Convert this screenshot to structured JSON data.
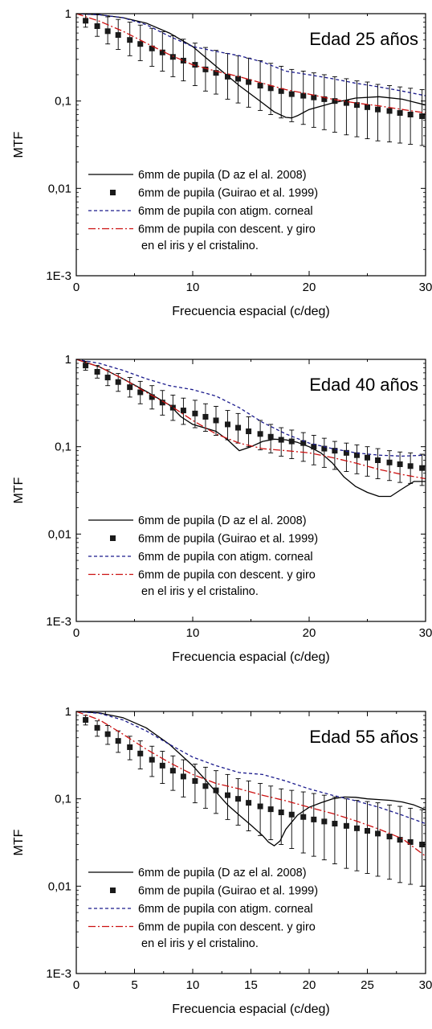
{
  "chart_data": [
    {
      "type": "line",
      "title": "Edad 25 años",
      "xlabel": "Frecuencia espacial (c/deg)",
      "ylabel": "MTF",
      "xlim": [
        0,
        30
      ],
      "ylim": [
        0.001,
        1
      ],
      "yscale": "log",
      "grid": false,
      "legend_position": "bottom-left",
      "x_ticks": [
        {
          "v": 0,
          "label": "0"
        },
        {
          "v": 10,
          "label": "10"
        },
        {
          "v": 20,
          "label": "20"
        },
        {
          "v": 30,
          "label": "30"
        }
      ],
      "y_ticks": [
        {
          "v": 0.001,
          "label": "1E-3"
        },
        {
          "v": 0.01,
          "label": "0,01"
        },
        {
          "v": 0.1,
          "label": "0,1"
        },
        {
          "v": 1,
          "label": "1"
        }
      ],
      "legend_note": "en el iris y el cristalino.",
      "series": [
        {
          "name": "6mm de pupila (D az el al. 2008)",
          "style": "solid",
          "color": "#000000",
          "x": [
            0,
            2,
            4,
            6,
            8,
            10,
            12,
            14,
            16,
            17,
            18,
            18.5,
            19,
            20,
            22,
            24,
            26,
            28,
            30
          ],
          "y": [
            1,
            0.97,
            0.9,
            0.78,
            0.6,
            0.42,
            0.25,
            0.15,
            0.095,
            0.075,
            0.065,
            0.064,
            0.068,
            0.08,
            0.095,
            0.108,
            0.112,
            0.105,
            0.09
          ]
        },
        {
          "name": "6mm de pupila (Guirao et al. 1999)",
          "style": "markers",
          "color": "#1a1a1a",
          "x": [
            0.8,
            1.8,
            2.7,
            3.6,
            4.6,
            5.5,
            6.5,
            7.4,
            8.3,
            9.2,
            10.2,
            11.1,
            12,
            13,
            13.9,
            14.8,
            15.8,
            16.7,
            17.6,
            18.5,
            19.5,
            20.4,
            21.3,
            22.2,
            23.2,
            24.1,
            25,
            25.9,
            26.9,
            27.8,
            28.7,
            29.7
          ],
          "y": [
            0.83,
            0.72,
            0.63,
            0.57,
            0.5,
            0.45,
            0.4,
            0.36,
            0.32,
            0.29,
            0.26,
            0.23,
            0.21,
            0.19,
            0.18,
            0.165,
            0.15,
            0.14,
            0.13,
            0.12,
            0.115,
            0.11,
            0.105,
            0.1,
            0.095,
            0.09,
            0.085,
            0.08,
            0.077,
            0.073,
            0.07,
            0.067
          ],
          "err_up": [
            1.02,
            0.98,
            0.92,
            0.86,
            0.8,
            0.74,
            0.68,
            0.62,
            0.56,
            0.51,
            0.46,
            0.41,
            0.38,
            0.35,
            0.33,
            0.31,
            0.29,
            0.27,
            0.25,
            0.23,
            0.22,
            0.21,
            0.2,
            0.19,
            0.18,
            0.17,
            0.165,
            0.155,
            0.15,
            0.145,
            0.14,
            0.135
          ],
          "err_down": [
            0.7,
            0.55,
            0.45,
            0.39,
            0.33,
            0.29,
            0.25,
            0.22,
            0.19,
            0.17,
            0.15,
            0.13,
            0.12,
            0.105,
            0.095,
            0.085,
            0.078,
            0.07,
            0.064,
            0.058,
            0.054,
            0.05,
            0.047,
            0.044,
            0.041,
            0.039,
            0.037,
            0.035,
            0.034,
            0.033,
            0.032,
            0.031
          ]
        },
        {
          "name": "6mm de pupila con atigm. corneal",
          "style": "dashed",
          "color": "#1a1a8c",
          "x": [
            0,
            2,
            4,
            6,
            8,
            10,
            12,
            14,
            16,
            18,
            20,
            22,
            24,
            26,
            28,
            30
          ],
          "y": [
            1,
            0.97,
            0.9,
            0.75,
            0.55,
            0.42,
            0.37,
            0.33,
            0.28,
            0.22,
            0.2,
            0.18,
            0.16,
            0.145,
            0.13,
            0.115
          ]
        },
        {
          "name": "6mm de pupila con descent. y giro",
          "style": "dashdot",
          "color": "#cc1111",
          "x": [
            0,
            2,
            4,
            6,
            8,
            10,
            12,
            14,
            16,
            18,
            20,
            22,
            24,
            26,
            28,
            30
          ],
          "y": [
            1,
            0.82,
            0.63,
            0.46,
            0.34,
            0.26,
            0.22,
            0.19,
            0.16,
            0.135,
            0.12,
            0.105,
            0.095,
            0.088,
            0.08,
            0.073
          ]
        }
      ]
    },
    {
      "type": "line",
      "title": "Edad 40 años",
      "xlabel": "Frecuencia espacial (c/deg)",
      "ylabel": "MTF",
      "xlim": [
        0,
        30
      ],
      "ylim": [
        0.001,
        1
      ],
      "yscale": "log",
      "grid": false,
      "legend_position": "bottom-left",
      "x_ticks": [
        {
          "v": 0,
          "label": "0"
        },
        {
          "v": 10,
          "label": "10"
        },
        {
          "v": 20,
          "label": "20"
        },
        {
          "v": 30,
          "label": "30"
        }
      ],
      "y_ticks": [
        {
          "v": 0.001,
          "label": "1E-3"
        },
        {
          "v": 0.01,
          "label": "0,01"
        },
        {
          "v": 0.1,
          "label": "0,1"
        },
        {
          "v": 1,
          "label": "1"
        }
      ],
      "legend_note": "en el iris y el cristalino.",
      "series": [
        {
          "name": "6mm de pupila (D az el al. 2008)",
          "style": "solid",
          "color": "#000000",
          "x": [
            0,
            2,
            4,
            6,
            8,
            9,
            10,
            12,
            13,
            14,
            15,
            16,
            17,
            18,
            19,
            20,
            21,
            22,
            23,
            24,
            25,
            26,
            27,
            28,
            29,
            30
          ],
          "y": [
            1,
            0.82,
            0.6,
            0.43,
            0.3,
            0.22,
            0.18,
            0.15,
            0.12,
            0.09,
            0.1,
            0.115,
            0.122,
            0.12,
            0.112,
            0.1,
            0.085,
            0.065,
            0.045,
            0.035,
            0.03,
            0.027,
            0.027,
            0.033,
            0.04,
            0.04
          ]
        },
        {
          "name": "6mm de pupila (Guirao et al. 1999)",
          "style": "markers",
          "color": "#1a1a1a",
          "x": [
            0.8,
            1.8,
            2.7,
            3.6,
            4.6,
            5.5,
            6.5,
            7.4,
            8.3,
            9.2,
            10.2,
            11.1,
            12,
            13,
            13.9,
            14.8,
            15.8,
            16.7,
            17.6,
            18.5,
            19.5,
            20.4,
            21.3,
            22.2,
            23.2,
            24.1,
            25,
            25.9,
            26.9,
            27.8,
            28.7,
            29.7
          ],
          "y": [
            0.85,
            0.72,
            0.62,
            0.55,
            0.48,
            0.42,
            0.37,
            0.32,
            0.28,
            0.26,
            0.24,
            0.22,
            0.2,
            0.18,
            0.165,
            0.15,
            0.14,
            0.13,
            0.12,
            0.115,
            0.11,
            0.1,
            0.095,
            0.09,
            0.085,
            0.08,
            0.075,
            0.07,
            0.066,
            0.063,
            0.06,
            0.057
          ],
          "err_up": [
            0.95,
            0.85,
            0.76,
            0.69,
            0.62,
            0.56,
            0.5,
            0.44,
            0.39,
            0.36,
            0.34,
            0.31,
            0.29,
            0.26,
            0.24,
            0.22,
            0.2,
            0.18,
            0.165,
            0.155,
            0.145,
            0.135,
            0.125,
            0.115,
            0.11,
            0.105,
            0.1,
            0.095,
            0.09,
            0.087,
            0.085,
            0.082
          ],
          "err_down": [
            0.75,
            0.61,
            0.5,
            0.43,
            0.37,
            0.31,
            0.27,
            0.23,
            0.2,
            0.18,
            0.165,
            0.15,
            0.135,
            0.12,
            0.11,
            0.1,
            0.092,
            0.085,
            0.078,
            0.073,
            0.068,
            0.062,
            0.058,
            0.055,
            0.052,
            0.049,
            0.046,
            0.043,
            0.041,
            0.039,
            0.038,
            0.036
          ]
        },
        {
          "name": "6mm de pupila con atigm. corneal",
          "style": "dashed",
          "color": "#1a1a8c",
          "x": [
            0,
            2,
            4,
            6,
            8,
            10,
            12,
            14,
            16,
            18,
            20,
            22,
            24,
            26,
            28,
            30
          ],
          "y": [
            1,
            0.9,
            0.75,
            0.6,
            0.5,
            0.45,
            0.38,
            0.28,
            0.19,
            0.14,
            0.11,
            0.095,
            0.085,
            0.08,
            0.078,
            0.08
          ]
        },
        {
          "name": "6mm de pupila con descent. y giro",
          "style": "dashdot",
          "color": "#cc1111",
          "x": [
            0,
            2,
            4,
            6,
            8,
            10,
            12,
            14,
            16,
            18,
            20,
            22,
            24,
            26,
            28,
            30
          ],
          "y": [
            1,
            0.82,
            0.6,
            0.42,
            0.3,
            0.2,
            0.14,
            0.11,
            0.095,
            0.09,
            0.085,
            0.075,
            0.065,
            0.055,
            0.048,
            0.043
          ]
        }
      ]
    },
    {
      "type": "line",
      "title": "Edad 55 años",
      "xlabel": "Frecuencia espacial (c/deg)",
      "ylabel": "MTF",
      "xlim": [
        0,
        30
      ],
      "ylim": [
        0.001,
        1
      ],
      "yscale": "log",
      "grid": false,
      "legend_position": "bottom-left",
      "x_ticks": [
        {
          "v": 0,
          "label": "0"
        },
        {
          "v": 5,
          "label": "5"
        },
        {
          "v": 10,
          "label": "10"
        },
        {
          "v": 15,
          "label": "15"
        },
        {
          "v": 20,
          "label": "20"
        },
        {
          "v": 25,
          "label": "25"
        },
        {
          "v": 30,
          "label": "30"
        }
      ],
      "y_ticks": [
        {
          "v": 0.001,
          "label": "1E-3"
        },
        {
          "v": 0.01,
          "label": "0,01"
        },
        {
          "v": 0.1,
          "label": "0,1"
        },
        {
          "v": 1,
          "label": "1"
        }
      ],
      "legend_note": "en el iris y el cristalino.",
      "series": [
        {
          "name": "6mm de pupila (D az el al. 2008)",
          "style": "solid",
          "color": "#000000",
          "x": [
            0,
            2,
            4,
            6,
            8,
            10,
            11,
            12,
            13,
            14,
            15,
            16,
            16.5,
            17,
            17.5,
            18,
            19,
            20,
            21,
            22,
            23,
            24,
            25,
            26,
            27,
            28,
            29,
            30
          ],
          "y": [
            1,
            0.96,
            0.85,
            0.65,
            0.42,
            0.24,
            0.17,
            0.12,
            0.085,
            0.065,
            0.05,
            0.038,
            0.032,
            0.029,
            0.033,
            0.045,
            0.065,
            0.08,
            0.09,
            0.1,
            0.105,
            0.104,
            0.1,
            0.098,
            0.096,
            0.092,
            0.085,
            0.075
          ]
        },
        {
          "name": "6mm de pupila (Guirao et al. 1999)",
          "style": "markers",
          "color": "#1a1a1a",
          "x": [
            0.8,
            1.8,
            2.7,
            3.6,
            4.6,
            5.5,
            6.5,
            7.4,
            8.3,
            9.2,
            10.2,
            11.1,
            12,
            13,
            13.9,
            14.8,
            15.8,
            16.7,
            17.6,
            18.5,
            19.5,
            20.4,
            21.3,
            22.2,
            23.2,
            24.1,
            25,
            25.9,
            26.9,
            27.8,
            28.7,
            29.7
          ],
          "y": [
            0.8,
            0.65,
            0.55,
            0.46,
            0.39,
            0.33,
            0.28,
            0.24,
            0.21,
            0.18,
            0.16,
            0.14,
            0.125,
            0.11,
            0.1,
            0.09,
            0.082,
            0.076,
            0.07,
            0.066,
            0.062,
            0.058,
            0.055,
            0.052,
            0.049,
            0.046,
            0.043,
            0.04,
            0.037,
            0.034,
            0.032,
            0.03
          ],
          "err_up": [
            0.9,
            0.78,
            0.69,
            0.6,
            0.52,
            0.46,
            0.4,
            0.35,
            0.31,
            0.28,
            0.25,
            0.23,
            0.21,
            0.19,
            0.17,
            0.16,
            0.15,
            0.14,
            0.13,
            0.125,
            0.12,
            0.115,
            0.11,
            0.105,
            0.1,
            0.096,
            0.093,
            0.09,
            0.085,
            0.082,
            0.078,
            0.075
          ],
          "err_down": [
            0.7,
            0.52,
            0.42,
            0.34,
            0.28,
            0.22,
            0.18,
            0.15,
            0.125,
            0.105,
            0.09,
            0.078,
            0.068,
            0.058,
            0.05,
            0.043,
            0.038,
            0.034,
            0.03,
            0.027,
            0.024,
            0.022,
            0.02,
            0.018,
            0.016,
            0.015,
            0.014,
            0.013,
            0.012,
            0.011,
            0.0105,
            0.01
          ]
        },
        {
          "name": "6mm de pupila con atigm. corneal",
          "style": "dashed",
          "color": "#1a1a8c",
          "x": [
            0,
            2,
            4,
            6,
            8,
            10,
            12,
            14,
            16,
            18,
            20,
            22,
            24,
            26,
            28,
            30
          ],
          "y": [
            1,
            0.95,
            0.8,
            0.6,
            0.42,
            0.3,
            0.24,
            0.2,
            0.19,
            0.16,
            0.13,
            0.11,
            0.095,
            0.08,
            0.065,
            0.052
          ]
        },
        {
          "name": "6mm de pupila con descent. y giro",
          "style": "dashdot",
          "color": "#cc1111",
          "x": [
            0,
            2,
            4,
            6,
            8,
            10,
            12,
            14,
            16,
            18,
            20,
            22,
            24,
            26,
            28,
            30
          ],
          "y": [
            1,
            0.8,
            0.55,
            0.37,
            0.26,
            0.19,
            0.15,
            0.13,
            0.11,
            0.095,
            0.08,
            0.068,
            0.056,
            0.045,
            0.035,
            0.022
          ]
        }
      ]
    }
  ]
}
